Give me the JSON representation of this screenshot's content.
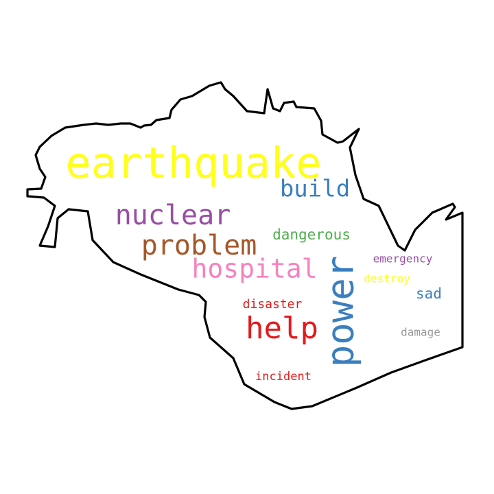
{
  "words": [
    {
      "text": "earthquake",
      "color": "#ffff1a"
    },
    {
      "text": "build",
      "color": "#3a7ebf"
    },
    {
      "text": "nuclear",
      "color": "#984ea3"
    },
    {
      "text": "dangerous",
      "color": "#4daf4a"
    },
    {
      "text": "problem",
      "color": "#a65628"
    },
    {
      "text": "emergency",
      "color": "#984ea3"
    },
    {
      "text": "hospital",
      "color": "#f781bf"
    },
    {
      "text": "power",
      "color": "#3a7ebf"
    },
    {
      "text": "destroy",
      "color": "#ffff1a"
    },
    {
      "text": "sad",
      "color": "#3a7ebf"
    },
    {
      "text": "disaster",
      "color": "#e41a1c"
    },
    {
      "text": "help",
      "color": "#e41a1c"
    },
    {
      "text": "damage",
      "color": "#999999"
    },
    {
      "text": "incident",
      "color": "#e41a1c"
    }
  ],
  "outline_color": "#000000"
}
